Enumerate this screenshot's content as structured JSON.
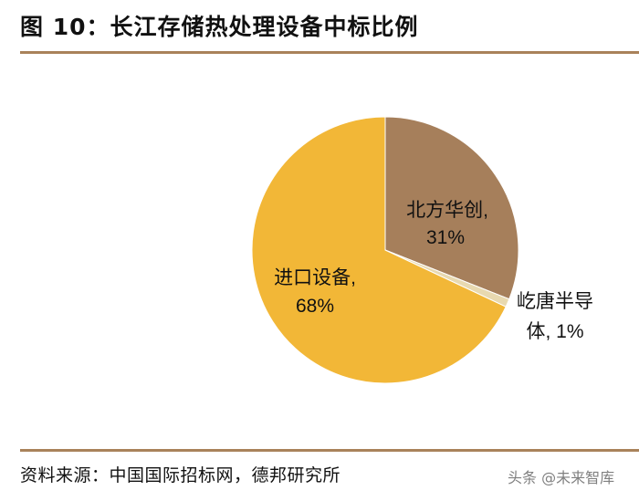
{
  "figure": {
    "title": "图 10：长江存储热处理设备中标比例",
    "source": "资料来源：中国国际招标网，德邦研究所",
    "watermark": "头条 @未来智库"
  },
  "chart_data": {
    "type": "pie",
    "title": "图 10：长江存储热处理设备中标比例",
    "start_angle_deg": 0,
    "direction": "clockwise",
    "slices": [
      {
        "label": "北方华创",
        "value": 31,
        "display": "31%",
        "color": "#a67f5b"
      },
      {
        "label": "屹唐半导体",
        "value": 1,
        "display": "1%",
        "color": "#e8d9b0"
      },
      {
        "label": "进口设备",
        "value": 68,
        "display": "68%",
        "color": "#f2b737"
      }
    ],
    "labels": [
      {
        "line1": "北方华创,",
        "line2": "31%"
      },
      {
        "line1": "屹唐半导",
        "line2": "体, 1%"
      },
      {
        "line1": "进口设备,",
        "line2": "68%"
      }
    ]
  }
}
